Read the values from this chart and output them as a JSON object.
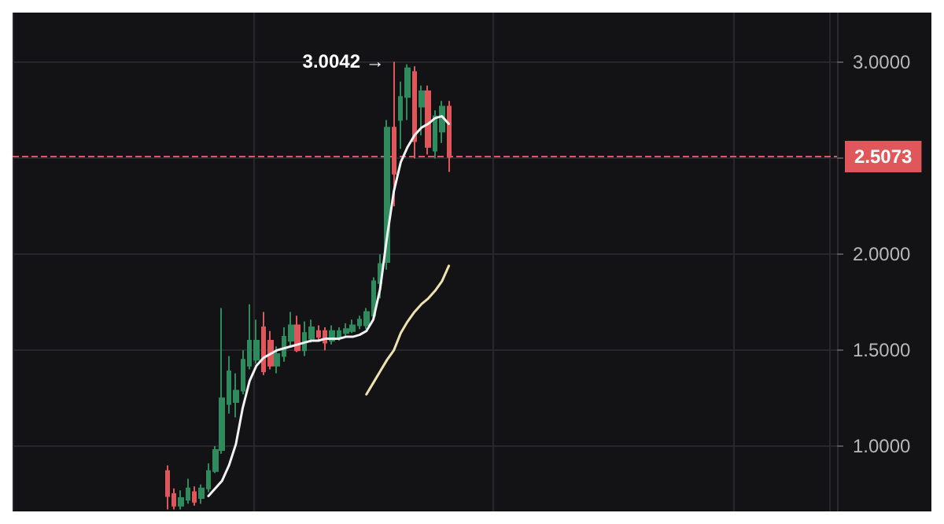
{
  "chart_data": {
    "type": "candlestick",
    "tick_labels": "y",
    "grid": true,
    "categories": [
      null,
      null,
      null,
      null,
      null,
      null,
      null,
      null,
      null,
      null,
      null,
      null,
      null,
      null,
      null,
      null,
      null,
      null,
      null,
      null,
      null,
      null,
      null,
      null,
      null,
      null,
      null,
      null,
      null,
      null,
      null,
      null,
      null,
      null,
      null,
      null,
      null,
      null,
      null,
      null,
      null,
      null,
      null,
      null,
      null,
      null,
      null,
      null,
      null,
      null,
      null,
      null,
      null,
      null,
      null,
      null,
      null,
      null,
      null,
      null,
      null,
      null,
      null,
      null,
      null,
      null,
      null,
      null,
      null,
      null,
      null,
      null,
      null,
      null,
      null,
      null,
      null,
      null,
      null,
      null,
      null,
      null,
      null,
      null,
      null,
      null,
      null,
      null,
      null,
      null,
      null,
      null,
      null,
      null,
      null,
      null,
      null,
      null,
      null,
      null,
      null,
      null,
      null,
      null,
      null,
      null,
      null,
      null,
      null,
      null,
      null,
      null,
      null,
      null,
      null,
      null,
      null,
      null,
      null,
      null
    ],
    "ohlc": [
      null,
      null,
      null,
      null,
      null,
      null,
      null,
      null,
      null,
      null,
      null,
      null,
      null,
      null,
      null,
      null,
      null,
      null,
      null,
      null,
      null,
      null,
      [
        0.87,
        0.9,
        0.67,
        0.74
      ],
      [
        0.75,
        0.78,
        0.67,
        0.69
      ],
      [
        0.69,
        0.77,
        0.67,
        0.73
      ],
      [
        0.72,
        0.83,
        0.7,
        0.78
      ],
      [
        0.76,
        0.79,
        0.69,
        0.71
      ],
      [
        0.73,
        0.8,
        0.7,
        0.78
      ],
      [
        0.78,
        0.91,
        0.76,
        0.87
      ],
      [
        0.87,
        1.0,
        0.86,
        0.98
      ],
      [
        0.98,
        1.72,
        0.96,
        1.25
      ],
      [
        1.22,
        1.47,
        1.17,
        1.39
      ],
      [
        1.23,
        1.38,
        1.15,
        1.29
      ],
      [
        1.29,
        1.5,
        1.27,
        1.45
      ],
      [
        1.42,
        1.74,
        1.4,
        1.55
      ],
      [
        1.45,
        1.66,
        1.43,
        1.55
      ],
      [
        1.62,
        1.7,
        1.37,
        1.39
      ],
      [
        1.55,
        1.6,
        1.4,
        1.42
      ],
      [
        1.42,
        1.52,
        1.38,
        1.48
      ],
      [
        1.47,
        1.62,
        1.44,
        1.57
      ],
      [
        1.55,
        1.7,
        1.52,
        1.63
      ],
      [
        1.63,
        1.68,
        1.49,
        1.5
      ],
      [
        1.5,
        1.65,
        1.47,
        1.59
      ],
      [
        1.56,
        1.66,
        1.54,
        1.62
      ],
      [
        1.6,
        1.63,
        1.55,
        1.57
      ],
      [
        1.6,
        1.62,
        1.5,
        1.54
      ],
      [
        1.55,
        1.63,
        1.53,
        1.6
      ],
      [
        1.57,
        1.62,
        1.55,
        1.6
      ],
      [
        1.59,
        1.64,
        1.57,
        1.61
      ],
      [
        1.6,
        1.66,
        1.59,
        1.63
      ],
      [
        1.63,
        1.68,
        1.61,
        1.66
      ],
      [
        1.63,
        1.72,
        1.61,
        1.7
      ],
      [
        1.68,
        1.88,
        1.66,
        1.86
      ],
      [
        1.85,
        2.0,
        1.77,
        1.95
      ],
      [
        1.96,
        2.7,
        1.92,
        2.66
      ],
      [
        2.66,
        3.0042,
        2.25,
        2.42
      ],
      [
        2.7,
        2.9,
        2.55,
        2.82
      ],
      [
        2.82,
        2.99,
        2.7,
        2.97
      ],
      [
        2.95,
        2.98,
        2.5,
        2.59
      ],
      [
        2.77,
        2.88,
        2.62,
        2.85
      ],
      [
        2.85,
        2.88,
        2.52,
        2.56
      ],
      [
        2.54,
        2.75,
        2.5,
        2.72
      ],
      [
        2.64,
        2.8,
        2.58,
        2.77
      ],
      [
        2.77,
        2.8,
        2.43,
        2.5073
      ],
      null,
      null,
      null,
      null,
      null,
      null,
      null,
      null,
      null,
      null,
      null,
      null,
      null,
      null,
      null,
      null,
      null,
      null,
      null,
      null,
      null,
      null,
      null,
      null,
      null,
      null,
      null,
      null,
      null,
      null,
      null,
      null,
      null,
      null,
      null,
      null,
      null,
      null,
      null,
      null,
      null,
      null,
      null,
      null,
      null,
      null,
      null,
      null,
      null,
      null,
      null,
      null,
      null,
      null,
      null,
      null
    ],
    "series": [
      {
        "type": "line",
        "color": "#f2f2f2",
        "values": [
          null,
          null,
          null,
          null,
          null,
          null,
          null,
          null,
          null,
          null,
          null,
          null,
          null,
          null,
          null,
          null,
          null,
          null,
          null,
          null,
          null,
          null,
          null,
          null,
          null,
          null,
          null,
          null,
          0.74,
          0.78,
          0.82,
          0.9,
          1.01,
          1.2,
          1.34,
          1.42,
          1.46,
          1.48,
          1.5,
          1.51,
          1.52,
          1.53,
          1.54,
          1.55,
          1.55,
          1.56,
          1.56,
          1.56,
          1.57,
          1.57,
          1.58,
          1.6,
          1.66,
          1.82,
          2.09,
          2.33,
          2.48,
          2.56,
          2.62,
          2.66,
          2.68,
          2.71,
          2.72,
          2.68,
          null,
          null,
          null,
          null,
          null,
          null,
          null,
          null,
          null,
          null,
          null,
          null,
          null,
          null,
          null,
          null,
          null,
          null,
          null,
          null,
          null,
          null,
          null,
          null,
          null,
          null,
          null,
          null,
          null,
          null,
          null,
          null,
          null,
          null,
          null,
          null,
          null,
          null,
          null,
          null,
          null,
          null,
          null,
          null,
          null,
          null,
          null,
          null,
          null,
          null,
          null,
          null,
          null,
          null,
          null,
          null
        ]
      },
      {
        "type": "line",
        "color": "#efe2b0",
        "values": [
          null,
          null,
          null,
          null,
          null,
          null,
          null,
          null,
          null,
          null,
          null,
          null,
          null,
          null,
          null,
          null,
          null,
          null,
          null,
          null,
          null,
          null,
          null,
          null,
          null,
          null,
          null,
          null,
          null,
          null,
          null,
          null,
          null,
          null,
          null,
          null,
          null,
          null,
          null,
          null,
          null,
          null,
          null,
          null,
          null,
          null,
          null,
          null,
          null,
          null,
          null,
          1.27,
          1.33,
          1.39,
          1.45,
          1.5,
          1.59,
          1.65,
          1.7,
          1.74,
          1.77,
          1.81,
          1.86,
          1.94,
          null,
          null,
          null,
          null,
          null,
          null,
          null,
          null,
          null,
          null,
          null,
          null,
          null,
          null,
          null,
          null,
          null,
          null,
          null,
          null,
          null,
          null,
          null,
          null,
          null,
          null,
          null,
          null,
          null,
          null,
          null,
          null,
          null,
          null,
          null,
          null,
          null,
          null,
          null,
          null,
          null,
          null,
          null,
          null,
          null,
          null,
          null,
          null,
          null,
          null,
          null,
          null,
          null,
          null,
          null,
          null
        ]
      }
    ],
    "ylim": [
      0.66,
      3.26
    ],
    "yticks": [
      {
        "value": 1,
        "label": "1.0000"
      },
      {
        "value": 1.5,
        "label": "1.5000"
      },
      {
        "value": 2,
        "label": "2.0000"
      },
      {
        "value": 2.5,
        "label": null
      },
      {
        "value": 3,
        "label": "3.0000"
      }
    ],
    "ref_lines": [
      {
        "axis": "y",
        "value": 2.5073,
        "label": "2.5073",
        "color": "#e0575b",
        "line_style": "dashed"
      }
    ],
    "annotations": [
      "3.0042 →"
    ]
  }
}
